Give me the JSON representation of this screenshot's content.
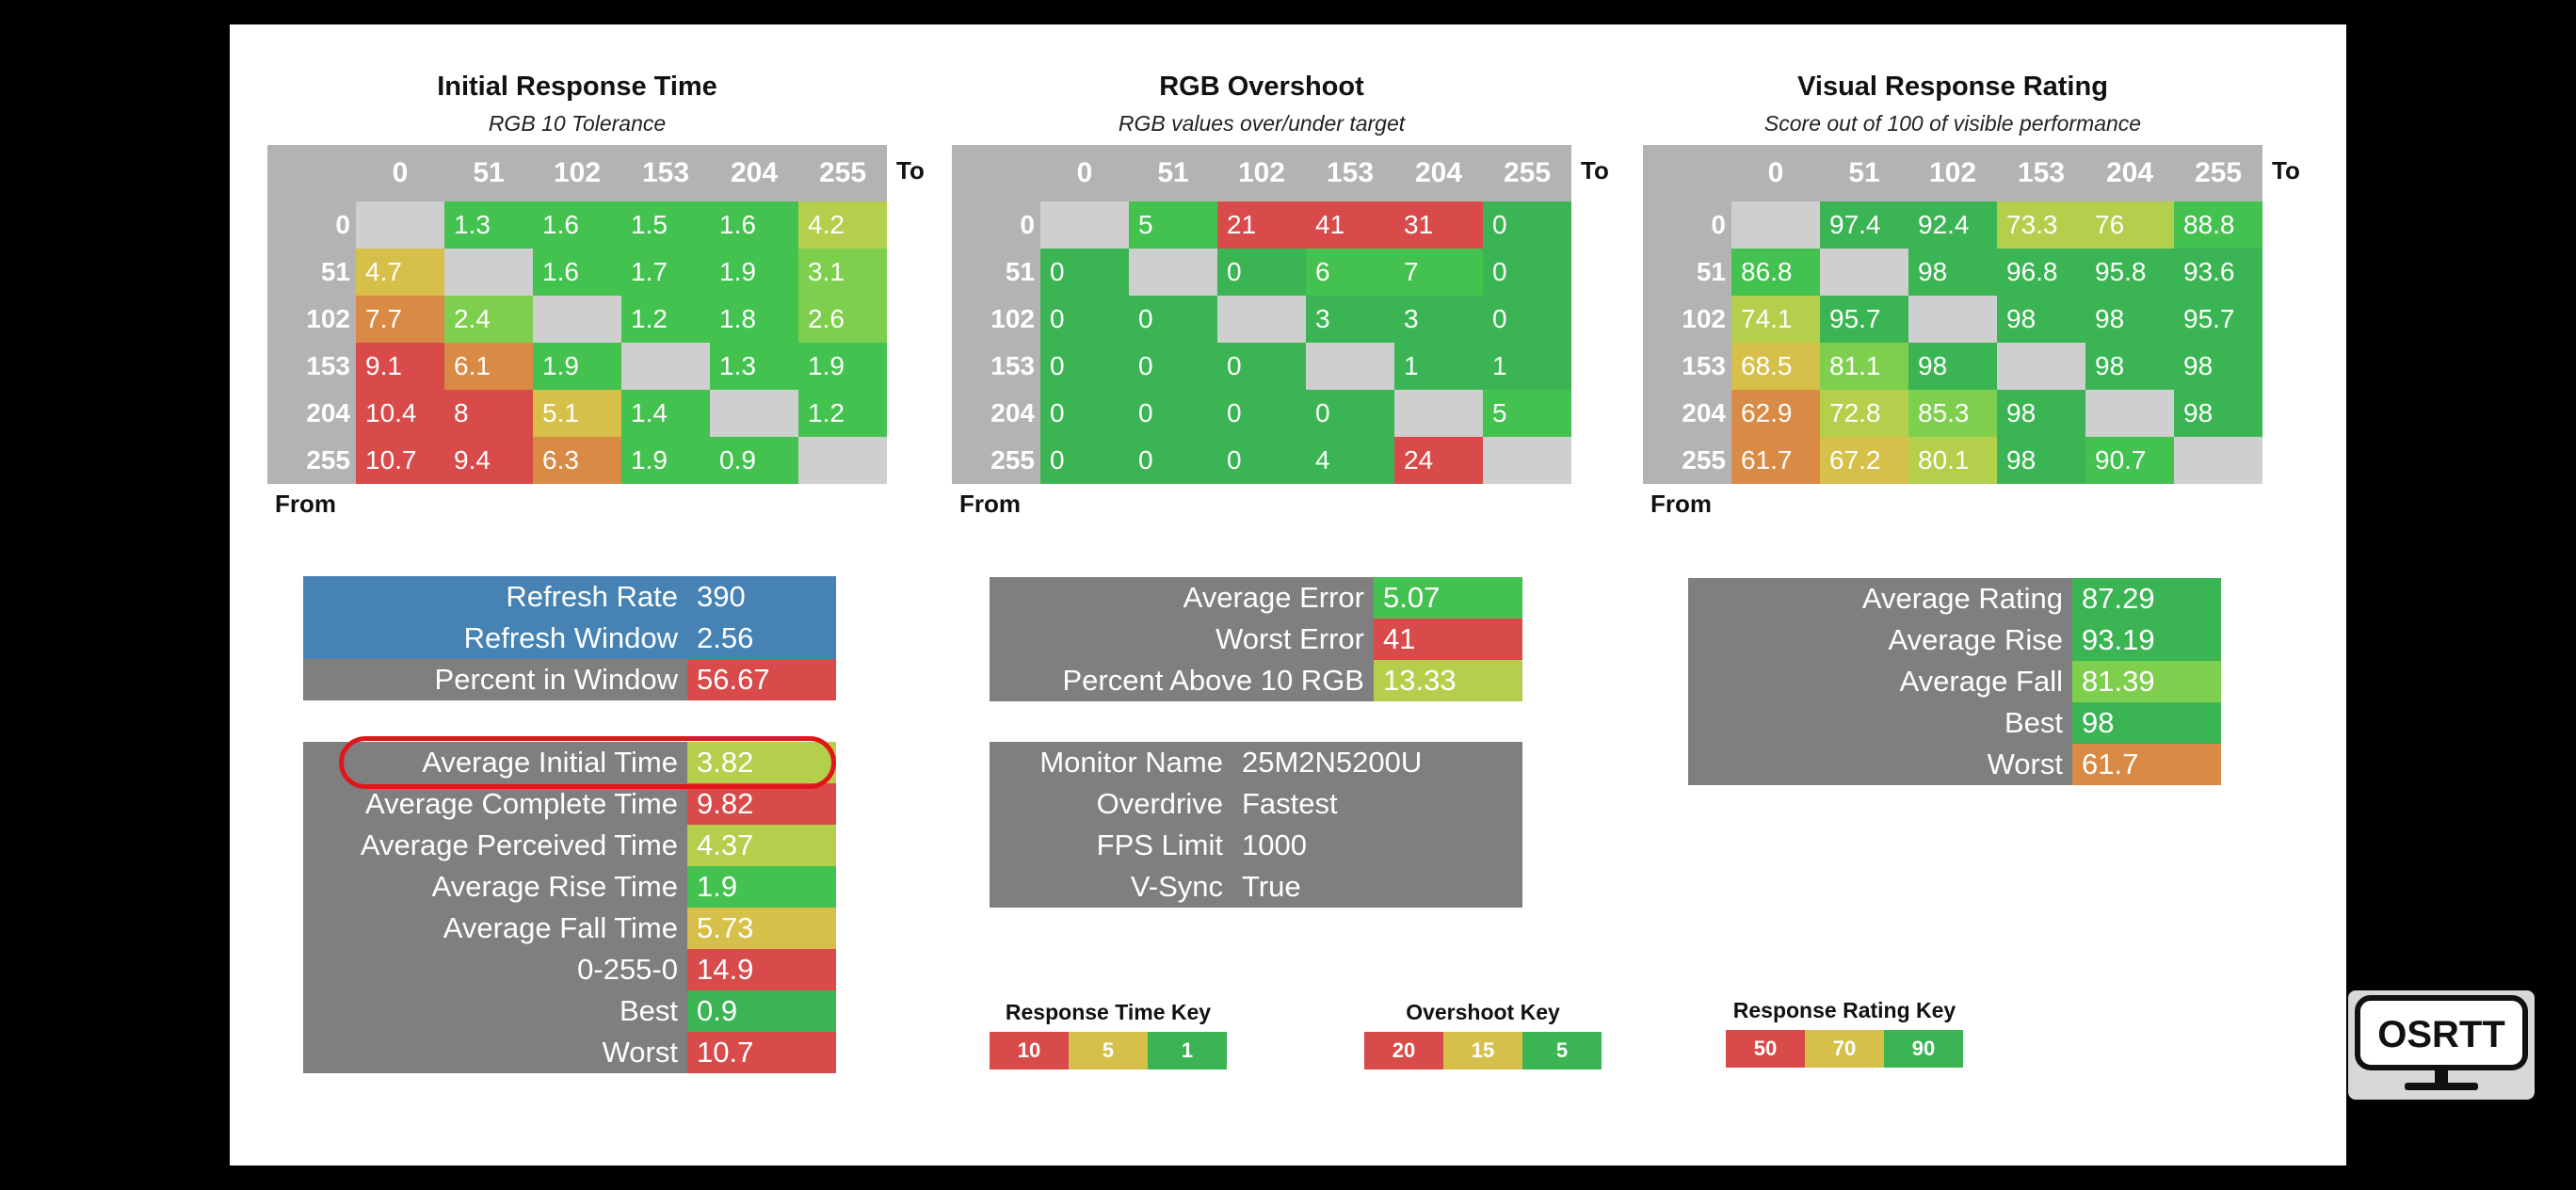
{
  "colors": {
    "red": "#d94a4a",
    "orange": "#d98a45",
    "yellow": "#d6c04a",
    "lime": "#b4cf4b",
    "light_green": "#7fcf4f",
    "green": "#43c24f",
    "mid_green": "#3bb553",
    "gray_cell": "#cfcfcf",
    "header_gray": "#b3b3b3",
    "stats_gray": "#7f7f7f",
    "blue": "#4682b4"
  },
  "matrices": [
    {
      "title": "Initial Response Time",
      "subtitle": "RGB 10 Tolerance",
      "to_label": "To",
      "from_label": "From",
      "cols": [
        "0",
        "51",
        "102",
        "153",
        "204",
        "255"
      ],
      "rows": [
        "0",
        "51",
        "102",
        "153",
        "204",
        "255"
      ],
      "cells": [
        [
          "",
          "1.3",
          "1.6",
          "1.5",
          "1.6",
          "4.2"
        ],
        [
          "4.7",
          "",
          "1.6",
          "1.7",
          "1.9",
          "3.1"
        ],
        [
          "7.7",
          "2.4",
          "",
          "1.2",
          "1.8",
          "2.6"
        ],
        [
          "9.1",
          "6.1",
          "1.9",
          "",
          "1.3",
          "1.9"
        ],
        [
          "10.4",
          "8",
          "5.1",
          "1.4",
          "",
          "1.2"
        ],
        [
          "10.7",
          "9.4",
          "6.3",
          "1.9",
          "0.9",
          ""
        ]
      ],
      "cell_colors": [
        [
          "gray_cell",
          "green",
          "green",
          "green",
          "green",
          "lime"
        ],
        [
          "yellow",
          "gray_cell",
          "green",
          "green",
          "green",
          "light_green"
        ],
        [
          "orange",
          "light_green",
          "gray_cell",
          "green",
          "green",
          "light_green"
        ],
        [
          "red",
          "orange",
          "green",
          "gray_cell",
          "green",
          "green"
        ],
        [
          "red",
          "red",
          "yellow",
          "green",
          "gray_cell",
          "green"
        ],
        [
          "red",
          "red",
          "orange",
          "green",
          "green",
          "gray_cell"
        ]
      ]
    },
    {
      "title": "RGB Overshoot",
      "subtitle": "RGB values over/under target",
      "to_label": "To",
      "from_label": "From",
      "cols": [
        "0",
        "51",
        "102",
        "153",
        "204",
        "255"
      ],
      "rows": [
        "0",
        "51",
        "102",
        "153",
        "204",
        "255"
      ],
      "cells": [
        [
          "",
          "5",
          "21",
          "41",
          "31",
          "0"
        ],
        [
          "0",
          "",
          "0",
          "6",
          "7",
          "0"
        ],
        [
          "0",
          "0",
          "",
          "3",
          "3",
          "0"
        ],
        [
          "0",
          "0",
          "0",
          "",
          "1",
          "1"
        ],
        [
          "0",
          "0",
          "0",
          "0",
          "",
          "5"
        ],
        [
          "0",
          "0",
          "0",
          "4",
          "24",
          ""
        ]
      ],
      "cell_colors": [
        [
          "gray_cell",
          "green",
          "red",
          "red",
          "red",
          "mid_green"
        ],
        [
          "mid_green",
          "gray_cell",
          "mid_green",
          "green",
          "green",
          "mid_green"
        ],
        [
          "mid_green",
          "mid_green",
          "gray_cell",
          "mid_green",
          "mid_green",
          "mid_green"
        ],
        [
          "mid_green",
          "mid_green",
          "mid_green",
          "gray_cell",
          "mid_green",
          "mid_green"
        ],
        [
          "mid_green",
          "mid_green",
          "mid_green",
          "mid_green",
          "gray_cell",
          "green"
        ],
        [
          "mid_green",
          "mid_green",
          "mid_green",
          "mid_green",
          "red",
          "gray_cell"
        ]
      ]
    },
    {
      "title": "Visual Response Rating",
      "subtitle": "Score out of 100 of visible performance",
      "to_label": "To",
      "from_label": "From",
      "cols": [
        "0",
        "51",
        "102",
        "153",
        "204",
        "255"
      ],
      "rows": [
        "0",
        "51",
        "102",
        "153",
        "204",
        "255"
      ],
      "cells": [
        [
          "",
          "97.4",
          "92.4",
          "73.3",
          "76",
          "88.8"
        ],
        [
          "86.8",
          "",
          "98",
          "96.8",
          "95.8",
          "93.6"
        ],
        [
          "74.1",
          "95.7",
          "",
          "98",
          "98",
          "95.7"
        ],
        [
          "68.5",
          "81.1",
          "98",
          "",
          "98",
          "98"
        ],
        [
          "62.9",
          "72.8",
          "85.3",
          "98",
          "",
          "98"
        ],
        [
          "61.7",
          "67.2",
          "80.1",
          "98",
          "90.7",
          ""
        ]
      ],
      "cell_colors": [
        [
          "gray_cell",
          "mid_green",
          "mid_green",
          "lime",
          "lime",
          "green"
        ],
        [
          "green",
          "gray_cell",
          "mid_green",
          "mid_green",
          "mid_green",
          "mid_green"
        ],
        [
          "lime",
          "mid_green",
          "gray_cell",
          "mid_green",
          "mid_green",
          "mid_green"
        ],
        [
          "yellow",
          "light_green",
          "mid_green",
          "gray_cell",
          "mid_green",
          "mid_green"
        ],
        [
          "orange",
          "lime",
          "light_green",
          "mid_green",
          "gray_cell",
          "mid_green"
        ],
        [
          "orange",
          "yellow",
          "lime",
          "mid_green",
          "green",
          "gray_cell"
        ]
      ]
    }
  ],
  "response_summary": [
    {
      "label": "Refresh Rate",
      "value": "390",
      "label_bg": "blue",
      "value_bg": "blue"
    },
    {
      "label": "Refresh Window",
      "value": "2.56",
      "label_bg": "blue",
      "value_bg": "blue"
    },
    {
      "label": "Percent in Window",
      "value": "56.67",
      "label_bg": "stats_gray",
      "value_bg": "red"
    }
  ],
  "time_stats": [
    {
      "label": "Average Initial Time",
      "value": "3.82",
      "value_bg": "lime"
    },
    {
      "label": "Average Complete Time",
      "value": "9.82",
      "value_bg": "red"
    },
    {
      "label": "Average Perceived Time",
      "value": "4.37",
      "value_bg": "lime"
    },
    {
      "label": "Average Rise Time",
      "value": "1.9",
      "value_bg": "green"
    },
    {
      "label": "Average Fall Time",
      "value": "5.73",
      "value_bg": "yellow"
    },
    {
      "label": "0-255-0",
      "value": "14.9",
      "value_bg": "red"
    },
    {
      "label": "Best",
      "value": "0.9",
      "value_bg": "mid_green"
    },
    {
      "label": "Worst",
      "value": "10.7",
      "value_bg": "red"
    }
  ],
  "overshoot_stats": [
    {
      "label": "Average Error",
      "value": "5.07",
      "value_bg": "green"
    },
    {
      "label": "Worst Error",
      "value": "41",
      "value_bg": "red"
    },
    {
      "label": "Percent Above 10 RGB",
      "value": "13.33",
      "value_bg": "lime"
    }
  ],
  "monitor_info": [
    {
      "label": "Monitor Name",
      "value": "25M2N5200U"
    },
    {
      "label": "Overdrive",
      "value": "Fastest"
    },
    {
      "label": "FPS Limit",
      "value": "1000"
    },
    {
      "label": "V-Sync",
      "value": "True"
    }
  ],
  "rating_stats": [
    {
      "label": "Average Rating",
      "value": "87.29",
      "value_bg": "mid_green"
    },
    {
      "label": "Average Rise",
      "value": "93.19",
      "value_bg": "mid_green"
    },
    {
      "label": "Average Fall",
      "value": "81.39",
      "value_bg": "light_green"
    },
    {
      "label": "Best",
      "value": "98",
      "value_bg": "mid_green"
    },
    {
      "label": "Worst",
      "value": "61.7",
      "value_bg": "orange"
    }
  ],
  "keys": [
    {
      "title": "Response Time Key",
      "values": [
        "10",
        "5",
        "1"
      ],
      "colors": [
        "red",
        "yellow",
        "mid_green"
      ]
    },
    {
      "title": "Overshoot Key",
      "values": [
        "20",
        "15",
        "5"
      ],
      "colors": [
        "red",
        "yellow",
        "mid_green"
      ]
    },
    {
      "title": "Response Rating Key",
      "values": [
        "50",
        "70",
        "90"
      ],
      "colors": [
        "red",
        "yellow",
        "mid_green"
      ]
    }
  ],
  "logo": {
    "text": "OSRTT"
  }
}
